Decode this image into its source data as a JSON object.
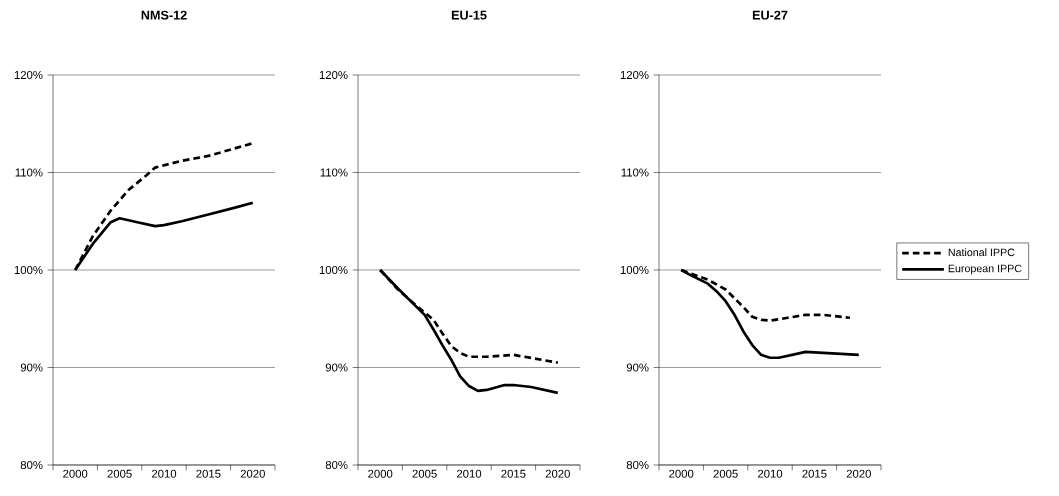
{
  "chart_data": [
    {
      "type": "line",
      "title": "NMS-12",
      "xlim": [
        1997.5,
        2022.5
      ],
      "xticks": [
        {
          "value": 1997.5,
          "label": null
        },
        {
          "value": 2000,
          "label": "2000"
        },
        {
          "value": 2002.5,
          "label": null
        },
        {
          "value": 2005,
          "label": "2005"
        },
        {
          "value": 2007.5,
          "label": null
        },
        {
          "value": 2010,
          "label": "2010"
        },
        {
          "value": 2012.5,
          "label": null
        },
        {
          "value": 2015,
          "label": "2015"
        },
        {
          "value": 2017.5,
          "label": null
        },
        {
          "value": 2020,
          "label": "2020"
        },
        {
          "value": 2022.5,
          "label": null
        }
      ],
      "ylim": [
        80,
        120
      ],
      "yticks": [
        {
          "value": 80,
          "label": "80%"
        },
        {
          "value": 90,
          "label": "90%"
        },
        {
          "value": 100,
          "label": "100%"
        },
        {
          "value": 110,
          "label": "110%"
        },
        {
          "value": 120,
          "label": "120%"
        }
      ],
      "grid": "y",
      "legend": false,
      "series": [
        {
          "color": "#000000",
          "line_style": "dashed",
          "x": [
            2000,
            2002,
            2004,
            2006,
            2008,
            2009,
            2012,
            2015,
            2020
          ],
          "values": [
            100,
            103.5,
            106.1,
            108.2,
            109.7,
            110.5,
            111.2,
            111.7,
            113.0
          ]
        },
        {
          "color": "#000000",
          "line_style": "solid",
          "x": [
            2000,
            2002,
            2004,
            2005,
            2007,
            2009,
            2010,
            2012,
            2015,
            2018,
            2020
          ],
          "values": [
            100,
            102.7,
            104.9,
            105.3,
            104.9,
            104.5,
            104.6,
            105.0,
            105.7,
            106.4,
            106.9
          ]
        }
      ]
    },
    {
      "type": "line",
      "title": "EU-15",
      "xlim": [
        1997.5,
        2022.5
      ],
      "xticks": [
        {
          "value": 1997.5,
          "label": null
        },
        {
          "value": 2000,
          "label": "2000"
        },
        {
          "value": 2002.5,
          "label": null
        },
        {
          "value": 2005,
          "label": "2005"
        },
        {
          "value": 2007.5,
          "label": null
        },
        {
          "value": 2010,
          "label": "2010"
        },
        {
          "value": 2012.5,
          "label": null
        },
        {
          "value": 2015,
          "label": "2015"
        },
        {
          "value": 2017.5,
          "label": null
        },
        {
          "value": 2020,
          "label": "2020"
        },
        {
          "value": 2022.5,
          "label": null
        }
      ],
      "ylim": [
        80,
        120
      ],
      "yticks": [
        {
          "value": 80,
          "label": "80%"
        },
        {
          "value": 90,
          "label": "90%"
        },
        {
          "value": 100,
          "label": "100%"
        },
        {
          "value": 110,
          "label": "110%"
        },
        {
          "value": 120,
          "label": "120%"
        }
      ],
      "grid": "y",
      "legend": false,
      "series": [
        {
          "color": "#000000",
          "line_style": "dashed",
          "x": [
            2000,
            2002,
            2004,
            2006,
            2007,
            2008,
            2009,
            2010,
            2012,
            2015,
            2020
          ],
          "values": [
            100,
            98.0,
            96.4,
            94.9,
            93.5,
            92.2,
            91.5,
            91.1,
            91.1,
            91.3,
            90.5
          ]
        },
        {
          "color": "#000000",
          "line_style": "solid",
          "x": [
            2000,
            2002,
            2004,
            2005,
            2006,
            2007,
            2008,
            2009,
            2010,
            2011,
            2012,
            2014,
            2015,
            2017,
            2020
          ],
          "values": [
            100,
            98.1,
            96.3,
            95.4,
            93.9,
            92.3,
            90.8,
            89.1,
            88.1,
            87.6,
            87.7,
            88.2,
            88.2,
            88.0,
            87.4
          ]
        }
      ]
    },
    {
      "type": "line",
      "title": "EU-27",
      "xlim": [
        1997.5,
        2022.5
      ],
      "xticks": [
        {
          "value": 1997.5,
          "label": null
        },
        {
          "value": 2000,
          "label": "2000"
        },
        {
          "value": 2002.5,
          "label": null
        },
        {
          "value": 2005,
          "label": "2005"
        },
        {
          "value": 2007.5,
          "label": null
        },
        {
          "value": 2010,
          "label": "2010"
        },
        {
          "value": 2012.5,
          "label": null
        },
        {
          "value": 2015,
          "label": "2015"
        },
        {
          "value": 2017.5,
          "label": null
        },
        {
          "value": 2020,
          "label": "2020"
        },
        {
          "value": 2022.5,
          "label": null
        }
      ],
      "ylim": [
        80,
        120
      ],
      "yticks": [
        {
          "value": 80,
          "label": "80%"
        },
        {
          "value": 90,
          "label": "90%"
        },
        {
          "value": 100,
          "label": "100%"
        },
        {
          "value": 110,
          "label": "110%"
        },
        {
          "value": 120,
          "label": "120%"
        }
      ],
      "grid": "y",
      "legend": "right",
      "series": [
        {
          "name": "National IPPC",
          "color": "#000000",
          "line_style": "dashed",
          "x": [
            2000,
            2003,
            2005,
            2006,
            2007,
            2008,
            2009,
            2010,
            2012,
            2014,
            2016,
            2019
          ],
          "values": [
            100,
            99.0,
            98.0,
            97.1,
            96.2,
            95.2,
            94.9,
            94.8,
            95.1,
            95.4,
            95.4,
            95.1
          ]
        },
        {
          "name": "European IPPC",
          "color": "#000000",
          "line_style": "solid",
          "x": [
            2000,
            2001,
            2003,
            2004,
            2005,
            2006,
            2007,
            2008,
            2009,
            2010,
            2011,
            2013,
            2014,
            2016,
            2020
          ],
          "values": [
            100,
            99.5,
            98.6,
            97.8,
            96.8,
            95.4,
            93.7,
            92.3,
            91.3,
            91.0,
            91.0,
            91.4,
            91.6,
            91.5,
            91.3
          ]
        }
      ]
    }
  ]
}
